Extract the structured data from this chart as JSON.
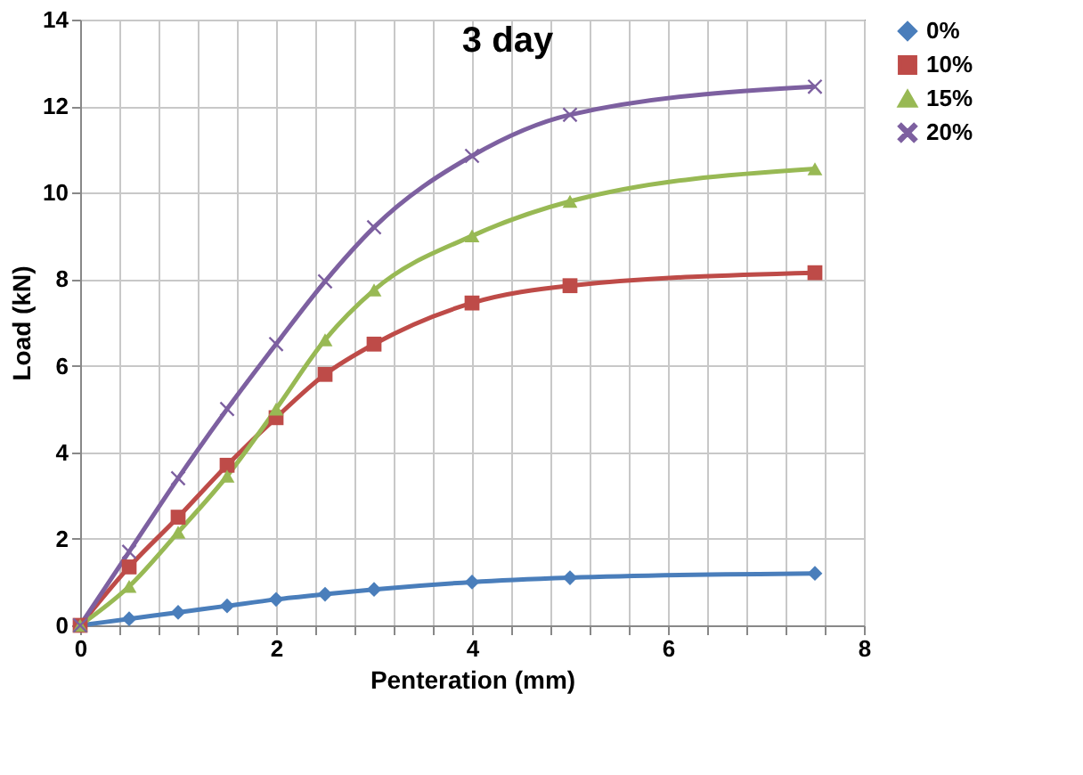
{
  "chart_data": {
    "type": "line",
    "title": "3 day",
    "xlabel": "Penteration (mm)",
    "ylabel": "Load (kN)",
    "x": [
      0,
      0.5,
      1,
      1.5,
      2,
      2.5,
      3,
      4,
      5,
      7.5
    ],
    "series": [
      {
        "name": "0%",
        "color": "#4a7ebb",
        "marker": "diamond",
        "values": [
          0,
          0.15,
          0.3,
          0.45,
          0.6,
          0.72,
          0.83,
          1.0,
          1.1,
          1.2
        ]
      },
      {
        "name": "10%",
        "color": "#be4b48",
        "marker": "square",
        "values": [
          0,
          1.35,
          2.5,
          3.7,
          4.8,
          5.8,
          6.5,
          7.45,
          7.85,
          8.15
        ]
      },
      {
        "name": "15%",
        "color": "#98b954",
        "marker": "triangle",
        "values": [
          0,
          0.9,
          2.15,
          3.45,
          5.0,
          6.6,
          7.75,
          9.0,
          9.8,
          10.55
        ]
      },
      {
        "name": "20%",
        "color": "#7d60a0",
        "marker": "cross",
        "values": [
          0,
          1.7,
          3.4,
          5.0,
          6.5,
          7.95,
          9.2,
          10.85,
          11.8,
          12.45
        ]
      }
    ],
    "xlim": [
      0,
      8
    ],
    "xticks": [
      0,
      {
        "value": 0.4,
        "label": null
      },
      {
        "value": 0.8,
        "label": null
      },
      {
        "value": 1.2,
        "label": null
      },
      {
        "value": 1.6,
        "label": null
      },
      2,
      {
        "value": 2.4,
        "label": null
      },
      {
        "value": 2.8,
        "label": null
      },
      {
        "value": 3.2,
        "label": null
      },
      {
        "value": 3.6,
        "label": null
      },
      4,
      {
        "value": 4.4,
        "label": null
      },
      {
        "value": 4.8,
        "label": null
      },
      {
        "value": 5.2,
        "label": null
      },
      {
        "value": 5.6,
        "label": null
      },
      6,
      {
        "value": 6.4,
        "label": null
      },
      {
        "value": 6.8,
        "label": null
      },
      {
        "value": 7.2,
        "label": null
      },
      {
        "value": 7.6,
        "label": null
      },
      8
    ],
    "ylim": [
      0,
      14
    ],
    "yticks": [
      0,
      2,
      4,
      6,
      8,
      10,
      12,
      14
    ],
    "grid": true,
    "legend": "right",
    "line_style": "solid"
  }
}
